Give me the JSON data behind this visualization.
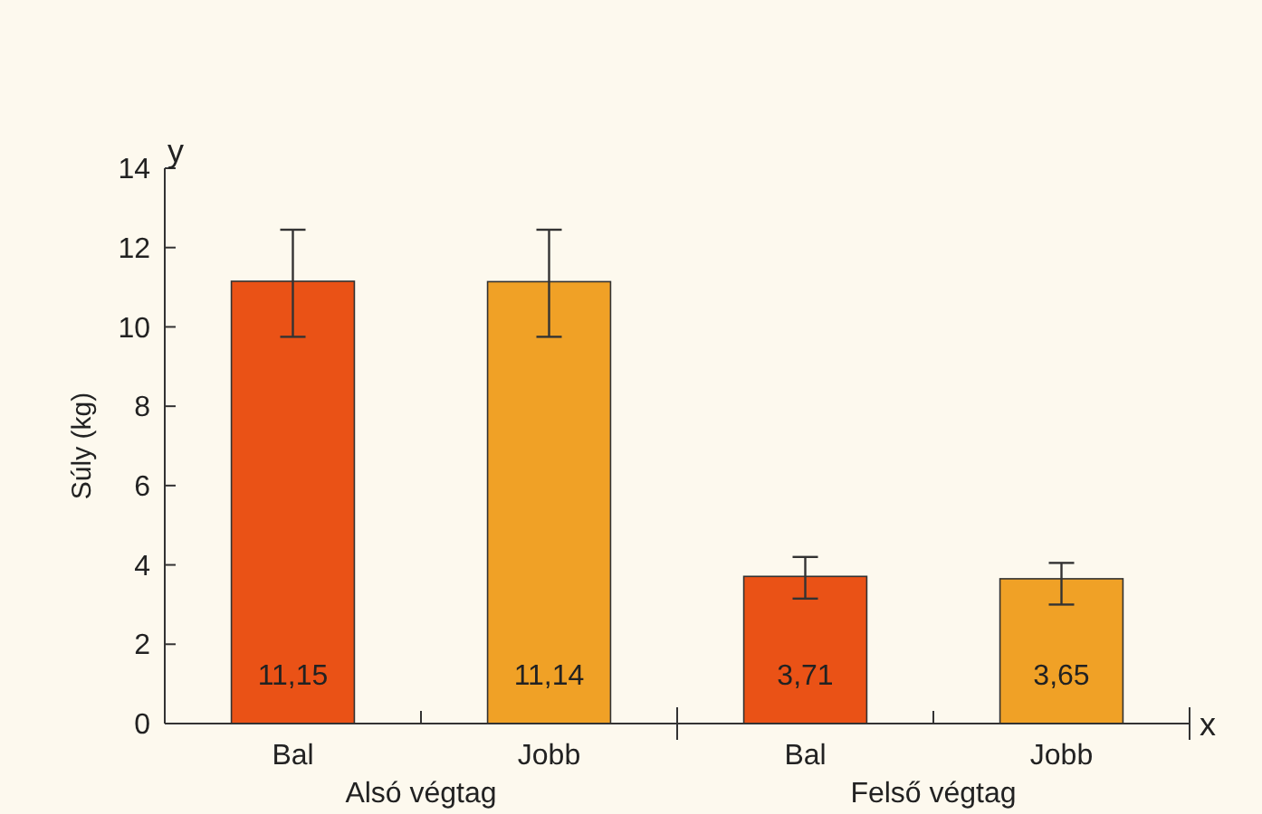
{
  "chart_data": {
    "type": "bar",
    "ylabel": "Súly (kg)",
    "categories": [
      "Bal",
      "Jobb",
      "Bal",
      "Jobb"
    ],
    "values": [
      11.15,
      11.14,
      3.71,
      3.65
    ],
    "colors": [
      "#ea5216",
      "#f0a126",
      "#ea5216",
      "#f0a126"
    ],
    "errors": [
      [
        9.75,
        12.45
      ],
      [
        9.75,
        12.45
      ],
      [
        3.15,
        4.2
      ],
      [
        3.0,
        4.05
      ]
    ],
    "value_labels": [
      "11,15",
      "11,14",
      "3,71",
      "3,65"
    ],
    "ylim": [
      0,
      14
    ],
    "yticks": [
      0,
      2,
      4,
      6,
      8,
      10,
      12,
      14
    ],
    "grid": false,
    "annotations": [
      "Alsó végtag",
      "Felső végtag",
      "y",
      "x"
    ]
  }
}
